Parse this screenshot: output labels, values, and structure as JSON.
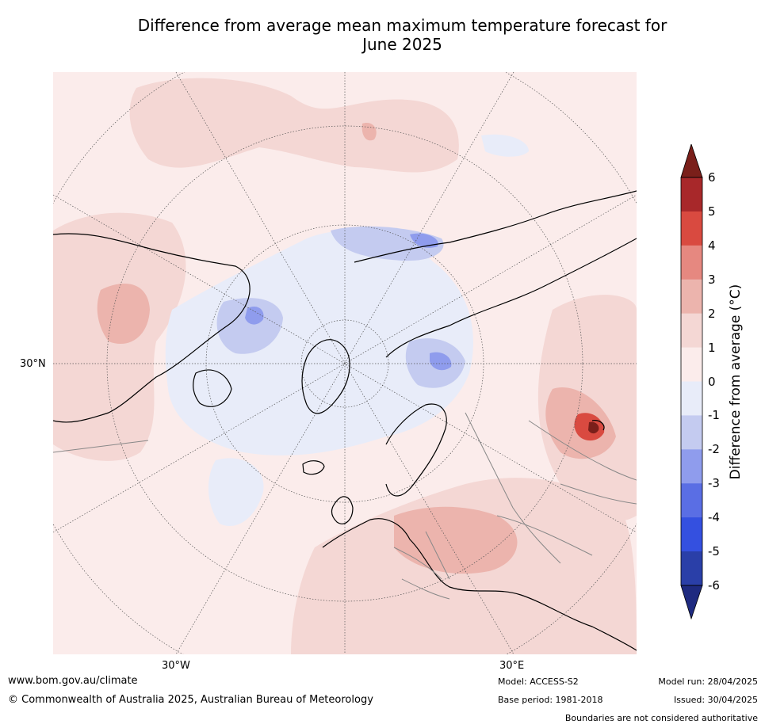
{
  "title_line1": "Difference from average mean maximum temperature forecast for",
  "title_line2": "June 2025",
  "map_labels": {
    "lat_30n": "30°N",
    "lon_30w": "30°W",
    "lon_30e": "30°E"
  },
  "colorbar": {
    "title": "Difference from average (°C)",
    "ticks": [
      "6",
      "5",
      "4",
      "3",
      "2",
      "1",
      "0",
      "-1",
      "-2",
      "-3",
      "-4",
      "-5",
      "-6"
    ],
    "colors": [
      "#7a1f1a",
      "#a8282a",
      "#d94a40",
      "#e68880",
      "#ecb4ad",
      "#f4d7d4",
      "#fbeceb",
      "#e8ecf9",
      "#c4cbf0",
      "#8f9ced",
      "#5a6ee4",
      "#3450e0",
      "#2a3fa8",
      "#1e2a80"
    ]
  },
  "footer": {
    "website": "www.bom.gov.au/climate",
    "copyright": "© Commonwealth of Australia 2025, Australian Bureau of Meteorology",
    "model": "Model: ACCESS-S2",
    "base_period": "Base period: 1981-2018",
    "model_run": "Model run: 28/04/2025",
    "issued": "Issued: 30/04/2025",
    "disclaimer": "Boundaries are not considered authoritative"
  }
}
